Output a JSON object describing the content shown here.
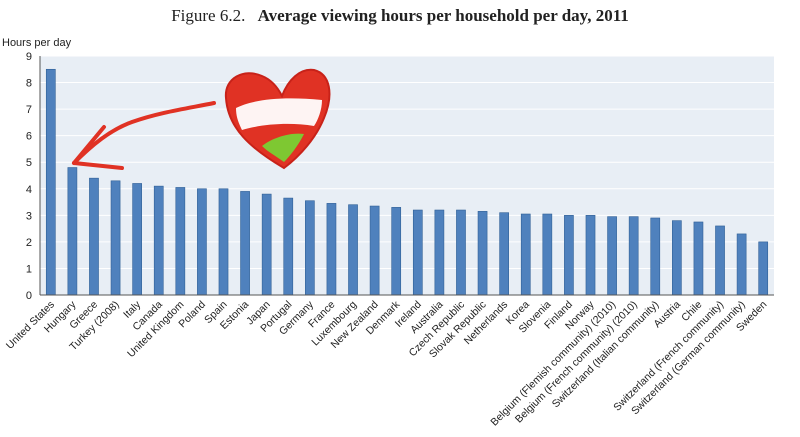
{
  "figure_label": "Figure 6.2.",
  "title": "Average viewing hours per household per day, 2011",
  "colors": {
    "bar": "#4f81bd",
    "bar_edge": "#2f5f96",
    "plot_bg": "#e8eef5",
    "grid": "#ffffff",
    "annotation_red": "#e03224",
    "annotation_green": "#7ec832"
  },
  "chart_data": {
    "type": "bar",
    "title": "Average viewing hours per household per day, 2011",
    "xlabel": "",
    "ylabel": "Hours per day",
    "ylim": [
      0,
      9
    ],
    "yticks": [
      0,
      1,
      2,
      3,
      4,
      5,
      6,
      7,
      8,
      9
    ],
    "grid": true,
    "categories": [
      "United States",
      "Hungary",
      "Greece",
      "Turkey (2008)",
      "Italy",
      "Canada",
      "United Kingdom",
      "Poland",
      "Spain",
      "Estonia",
      "Japan",
      "Portugal",
      "Germany",
      "France",
      "Luxembourg",
      "New Zealand",
      "Denmark",
      "Ireland",
      "Australia",
      "Czech Republic",
      "Slovak Republic",
      "Netherlands",
      "Korea",
      "Slovenia",
      "Finland",
      "Norway",
      "Belgium (Flemish community) (2010)",
      "Belgium (French community) (2010)",
      "Switzerland (Italian community)",
      "Austria",
      "Chile",
      "Switzerland (French community)",
      "Switzerland (German community)",
      "Sweden"
    ],
    "values": [
      8.5,
      4.8,
      4.4,
      4.3,
      4.2,
      4.1,
      4.05,
      4.0,
      4.0,
      3.9,
      3.8,
      3.65,
      3.55,
      3.45,
      3.4,
      3.35,
      3.3,
      3.2,
      3.2,
      3.2,
      3.15,
      3.1,
      3.05,
      3.05,
      3.0,
      3.0,
      2.95,
      2.95,
      2.9,
      2.8,
      2.75,
      2.6,
      2.3,
      2.0
    ]
  }
}
